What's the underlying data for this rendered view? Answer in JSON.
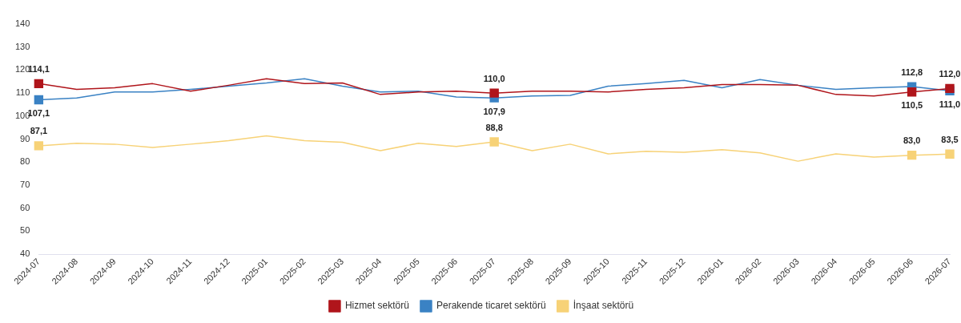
{
  "chart_data": {
    "type": "line",
    "categories": [
      "2024-07",
      "2024-08",
      "2024-09",
      "2024-10",
      "2024-11",
      "2024-12",
      "2025-01",
      "2025-02",
      "2025-03",
      "2025-04",
      "2025-05",
      "2025-06",
      "2025-07",
      "2025-08",
      "2025-09",
      "2025-10",
      "2025-11",
      "2025-12",
      "2026-01",
      "2026-02",
      "2026-03",
      "2026-04",
      "2026-05",
      "2026-06",
      "2026-07"
    ],
    "series": [
      {
        "name": "Hizmet sektörü",
        "color": "#b0151b",
        "values": [
          114.1,
          111.6,
          112.3,
          114.1,
          110.8,
          113.4,
          116.2,
          114.1,
          114.4,
          109.4,
          110.5,
          110.8,
          110.0,
          110.8,
          110.8,
          110.5,
          111.6,
          112.3,
          113.7,
          113.7,
          113.4,
          109.4,
          108.7,
          110.5,
          112.0
        ],
        "value_labels": [
          "114,1",
          null,
          null,
          null,
          null,
          null,
          null,
          null,
          null,
          null,
          null,
          null,
          "110,0",
          null,
          null,
          null,
          null,
          null,
          null,
          null,
          null,
          null,
          null,
          "110,5",
          "112,0"
        ]
      },
      {
        "name": "Perakende ticaret sektörü",
        "color": "#3a82c4",
        "values": [
          107.1,
          107.9,
          110.5,
          110.5,
          111.6,
          113.0,
          114.4,
          116.2,
          113.0,
          110.5,
          110.8,
          108.3,
          107.9,
          108.7,
          109.0,
          113.0,
          114.1,
          115.5,
          112.3,
          115.9,
          113.4,
          111.6,
          112.3,
          112.8,
          111.0
        ],
        "value_labels": [
          "107,1",
          null,
          null,
          null,
          null,
          null,
          null,
          null,
          null,
          null,
          null,
          null,
          "107,9",
          null,
          null,
          null,
          null,
          null,
          null,
          null,
          null,
          null,
          null,
          "112,8",
          "111,0"
        ]
      },
      {
        "name": "İnşaat sektörü",
        "color": "#f7d277",
        "values": [
          87.1,
          88.2,
          87.8,
          86.4,
          87.8,
          89.3,
          91.4,
          89.3,
          88.6,
          85.0,
          88.2,
          86.8,
          88.8,
          85.0,
          87.8,
          83.6,
          84.7,
          84.3,
          85.4,
          84.0,
          80.4,
          83.6,
          82.2,
          83.0,
          83.5
        ],
        "value_labels": [
          "87,1",
          null,
          null,
          null,
          null,
          null,
          null,
          null,
          null,
          null,
          null,
          null,
          "88,8",
          null,
          null,
          null,
          null,
          null,
          null,
          null,
          null,
          null,
          null,
          "83,0",
          "83,5"
        ]
      }
    ],
    "ylim": [
      40,
      140
    ],
    "yticks": [
      40,
      50,
      60,
      70,
      80,
      90,
      100,
      110,
      120,
      130,
      140
    ],
    "grid": false,
    "legend": "bottom",
    "line_style": "solid"
  }
}
